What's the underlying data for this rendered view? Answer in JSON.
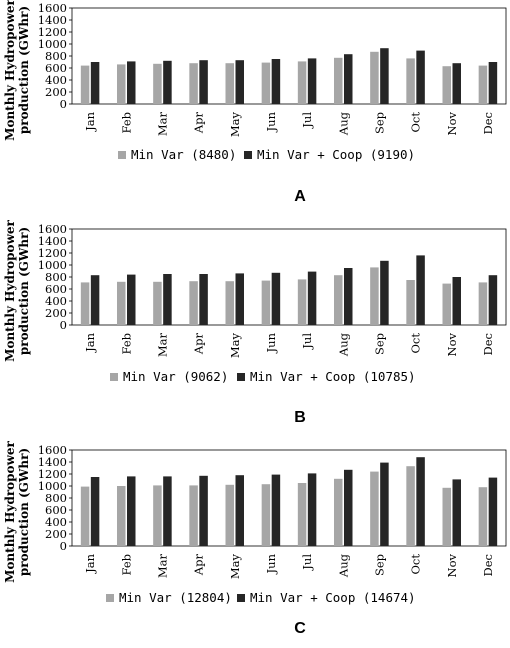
{
  "chart_data": [
    {
      "type": "bar",
      "panel_label": "A",
      "ylabel": "Monthly Hydropower production (GWhr)",
      "ylim": [
        0,
        1600
      ],
      "yticks": [
        0,
        200,
        400,
        600,
        800,
        1000,
        1200,
        1400,
        1600
      ],
      "categories": [
        "Jan",
        "Feb",
        "Mar",
        "Apr",
        "May",
        "Jun",
        "Jul",
        "Aug",
        "Sep",
        "Oct",
        "Nov",
        "Dec"
      ],
      "series": [
        {
          "name": "Min Var (8480)",
          "color": "#a6a6a6",
          "values": [
            640,
            660,
            670,
            680,
            680,
            690,
            710,
            770,
            870,
            760,
            630,
            640
          ]
        },
        {
          "name": "Min Var + Coop (9190)",
          "color": "#262626",
          "values": [
            700,
            710,
            720,
            730,
            730,
            750,
            760,
            830,
            930,
            890,
            680,
            700
          ]
        }
      ],
      "legend_position": "bottom",
      "grid": false
    },
    {
      "type": "bar",
      "panel_label": "B",
      "ylabel": "Monthly Hydropower production (GWhr)",
      "ylim": [
        0,
        1600
      ],
      "yticks": [
        0,
        200,
        400,
        600,
        800,
        1000,
        1200,
        1400,
        1600
      ],
      "categories": [
        "Jan",
        "Feb",
        "Mar",
        "Apr",
        "May",
        "Jun",
        "Jul",
        "Aug",
        "Sep",
        "Oct",
        "Nov",
        "Dec"
      ],
      "series": [
        {
          "name": "Min Var (9062)",
          "color": "#a6a6a6",
          "values": [
            710,
            720,
            720,
            730,
            730,
            740,
            760,
            830,
            960,
            750,
            690,
            710
          ]
        },
        {
          "name": "Min Var + Coop (10785)",
          "color": "#262626",
          "values": [
            830,
            840,
            850,
            850,
            860,
            870,
            890,
            950,
            1070,
            1160,
            800,
            830
          ]
        }
      ],
      "legend_position": "bottom",
      "grid": false
    },
    {
      "type": "bar",
      "panel_label": "C",
      "ylabel": "Monthly Hydropower production (GWhr)",
      "ylim": [
        0,
        1600
      ],
      "yticks": [
        0,
        200,
        400,
        600,
        800,
        1000,
        1200,
        1400,
        1600
      ],
      "categories": [
        "Jan",
        "Feb",
        "Mar",
        "Apr",
        "May",
        "Jun",
        "Jul",
        "Aug",
        "Sep",
        "Oct",
        "Nov",
        "Dec"
      ],
      "series": [
        {
          "name": "Min Var (12804)",
          "color": "#a6a6a6",
          "values": [
            990,
            1000,
            1010,
            1010,
            1020,
            1030,
            1050,
            1120,
            1240,
            1330,
            970,
            980
          ]
        },
        {
          "name": "Min Var + Coop (14674)",
          "color": "#262626",
          "values": [
            1150,
            1160,
            1160,
            1170,
            1180,
            1190,
            1210,
            1270,
            1390,
            1480,
            1110,
            1140
          ]
        }
      ],
      "legend_position": "bottom",
      "grid": false
    }
  ]
}
